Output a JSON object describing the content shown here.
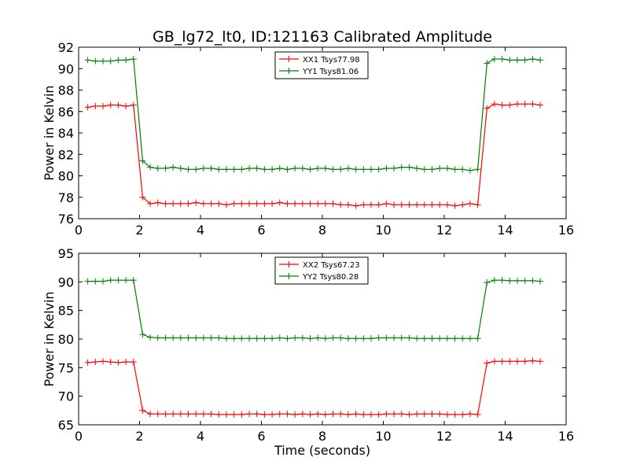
{
  "figure_title": "GB_lg72_lt0, ID:121163 Calibrated Amplitude",
  "chart_data": [
    {
      "type": "line",
      "ylabel": "Power in Kelvin",
      "xlabel": "",
      "xlim": [
        0,
        16
      ],
      "ylim": [
        76,
        92
      ],
      "xticks": [
        0,
        2,
        4,
        6,
        8,
        10,
        12,
        14,
        16
      ],
      "yticks": [
        76,
        78,
        80,
        82,
        84,
        86,
        88,
        90,
        92
      ],
      "grid": false,
      "legend_position": "top-center",
      "x": [
        0.3,
        0.55,
        0.8,
        1.05,
        1.3,
        1.55,
        1.8,
        2.1,
        2.35,
        2.6,
        2.85,
        3.1,
        3.35,
        3.6,
        3.85,
        4.1,
        4.35,
        4.6,
        4.85,
        5.1,
        5.35,
        5.6,
        5.85,
        6.1,
        6.35,
        6.6,
        6.85,
        7.1,
        7.35,
        7.6,
        7.85,
        8.1,
        8.35,
        8.6,
        8.85,
        9.1,
        9.35,
        9.6,
        9.85,
        10.1,
        10.35,
        10.6,
        10.85,
        11.1,
        11.35,
        11.6,
        11.85,
        12.1,
        12.35,
        12.6,
        12.85,
        13.1,
        13.4,
        13.65,
        13.9,
        14.15,
        14.4,
        14.65,
        14.9,
        15.15
      ],
      "series": [
        {
          "name": "XX1 Tsys77.98",
          "color": "#ff0000",
          "values": [
            86.4,
            86.5,
            86.5,
            86.6,
            86.6,
            86.5,
            86.6,
            78.0,
            77.4,
            77.5,
            77.4,
            77.4,
            77.4,
            77.4,
            77.5,
            77.4,
            77.4,
            77.4,
            77.3,
            77.4,
            77.4,
            77.4,
            77.4,
            77.4,
            77.4,
            77.5,
            77.4,
            77.4,
            77.4,
            77.4,
            77.4,
            77.4,
            77.4,
            77.3,
            77.3,
            77.2,
            77.3,
            77.3,
            77.3,
            77.4,
            77.3,
            77.3,
            77.3,
            77.3,
            77.3,
            77.3,
            77.3,
            77.3,
            77.2,
            77.3,
            77.4,
            77.3,
            86.3,
            86.7,
            86.6,
            86.6,
            86.7,
            86.7,
            86.7,
            86.6
          ]
        },
        {
          "name": "YY1 Tsys81.06",
          "color": "#008000",
          "values": [
            90.8,
            90.7,
            90.7,
            90.7,
            90.8,
            90.8,
            90.9,
            81.4,
            80.8,
            80.7,
            80.7,
            80.8,
            80.7,
            80.6,
            80.6,
            80.7,
            80.7,
            80.6,
            80.6,
            80.6,
            80.6,
            80.7,
            80.7,
            80.6,
            80.6,
            80.7,
            80.6,
            80.7,
            80.7,
            80.6,
            80.7,
            80.7,
            80.6,
            80.6,
            80.7,
            80.6,
            80.6,
            80.6,
            80.6,
            80.7,
            80.7,
            80.8,
            80.8,
            80.7,
            80.6,
            80.6,
            80.7,
            80.7,
            80.6,
            80.6,
            80.5,
            80.6,
            90.5,
            90.9,
            90.9,
            90.8,
            90.8,
            90.8,
            90.9,
            90.8
          ]
        }
      ]
    },
    {
      "type": "line",
      "ylabel": "Power in Kelvin",
      "xlabel": "Time (seconds)",
      "xlim": [
        0,
        16
      ],
      "ylim": [
        65,
        95
      ],
      "xticks": [
        0,
        2,
        4,
        6,
        8,
        10,
        12,
        14,
        16
      ],
      "yticks": [
        65,
        70,
        75,
        80,
        85,
        90,
        95
      ],
      "grid": false,
      "legend_position": "top-center",
      "x": [
        0.3,
        0.55,
        0.8,
        1.05,
        1.3,
        1.55,
        1.8,
        2.1,
        2.35,
        2.6,
        2.85,
        3.1,
        3.35,
        3.6,
        3.85,
        4.1,
        4.35,
        4.6,
        4.85,
        5.1,
        5.35,
        5.6,
        5.85,
        6.1,
        6.35,
        6.6,
        6.85,
        7.1,
        7.35,
        7.6,
        7.85,
        8.1,
        8.35,
        8.6,
        8.85,
        9.1,
        9.35,
        9.6,
        9.85,
        10.1,
        10.35,
        10.6,
        10.85,
        11.1,
        11.35,
        11.6,
        11.85,
        12.1,
        12.35,
        12.6,
        12.85,
        13.1,
        13.4,
        13.65,
        13.9,
        14.15,
        14.4,
        14.65,
        14.9,
        15.15
      ],
      "series": [
        {
          "name": "XX2 Tsys67.23",
          "color": "#ff0000",
          "values": [
            75.9,
            76.0,
            76.1,
            76.0,
            75.9,
            76.0,
            76.0,
            67.5,
            66.9,
            66.9,
            66.9,
            66.9,
            66.9,
            66.9,
            66.9,
            66.9,
            66.9,
            66.8,
            66.8,
            66.8,
            66.8,
            66.9,
            66.9,
            66.8,
            66.8,
            66.9,
            66.9,
            66.8,
            66.9,
            66.8,
            66.9,
            66.8,
            66.9,
            66.9,
            66.8,
            66.9,
            66.8,
            66.8,
            66.8,
            66.9,
            66.9,
            66.9,
            66.8,
            66.9,
            66.9,
            66.9,
            66.9,
            66.8,
            66.8,
            66.8,
            66.9,
            66.8,
            75.8,
            76.1,
            76.1,
            76.1,
            76.1,
            76.1,
            76.2,
            76.1
          ]
        },
        {
          "name": "YY2 Tsys80.28",
          "color": "#008000",
          "values": [
            90.1,
            90.1,
            90.1,
            90.3,
            90.3,
            90.3,
            90.3,
            80.8,
            80.3,
            80.2,
            80.2,
            80.2,
            80.2,
            80.2,
            80.2,
            80.2,
            80.2,
            80.2,
            80.1,
            80.1,
            80.1,
            80.1,
            80.1,
            80.1,
            80.1,
            80.2,
            80.1,
            80.2,
            80.2,
            80.1,
            80.2,
            80.1,
            80.2,
            80.2,
            80.1,
            80.1,
            80.1,
            80.1,
            80.2,
            80.2,
            80.2,
            80.2,
            80.2,
            80.1,
            80.1,
            80.1,
            80.1,
            80.1,
            80.1,
            80.1,
            80.1,
            80.1,
            89.9,
            90.3,
            90.3,
            90.2,
            90.2,
            90.2,
            90.2,
            90.1
          ]
        }
      ]
    }
  ]
}
